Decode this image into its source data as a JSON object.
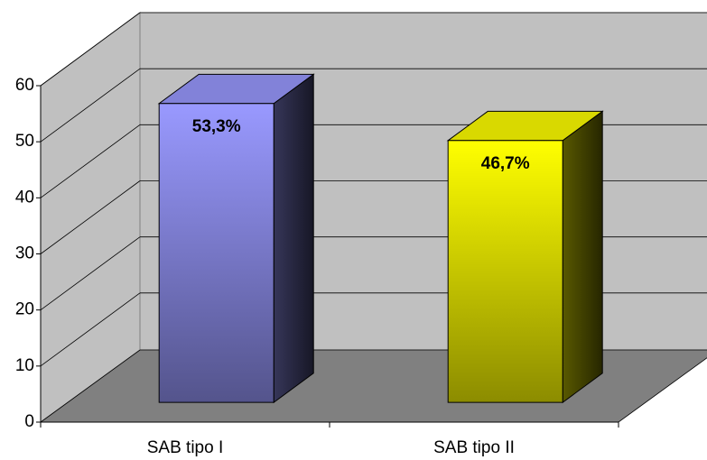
{
  "chart_data": {
    "type": "bar3d",
    "categories": [
      "SAB tipo I",
      "SAB tipo II"
    ],
    "values": [
      53.3,
      46.7
    ],
    "value_labels": [
      "53,3%",
      "46,7%"
    ],
    "colors": [
      "#9999ff",
      "#ffff00"
    ],
    "ylim": [
      0,
      60
    ],
    "yticks": [
      0,
      10,
      20,
      30,
      40,
      50,
      60
    ],
    "grid": true
  }
}
